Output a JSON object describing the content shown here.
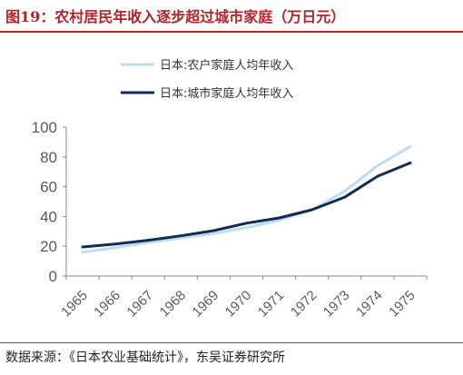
{
  "figure": {
    "title": "图19：农村居民年收入逐步超过城市家庭（万日元）",
    "source": "数据来源：《日本农业基础统计》，东吴证券研究所"
  },
  "colors": {
    "title": "#b5232a",
    "rural": "#bcdcf2",
    "urban": "#0f2d52",
    "axis": "#888888"
  },
  "chart_data": {
    "type": "line",
    "x": [
      "1965",
      "1966",
      "1967",
      "1968",
      "1969",
      "1970",
      "1971",
      "1972",
      "1973",
      "1974",
      "1975"
    ],
    "series": [
      {
        "name": "日本:农户家庭人均年收入",
        "values": [
          16,
          19,
          22.5,
          25.5,
          28.5,
          32.5,
          37.5,
          44.5,
          57,
          74,
          87
        ]
      },
      {
        "name": "日本:城市家庭人均年收入",
        "values": [
          19.5,
          21.5,
          24,
          27,
          30.5,
          35.5,
          39,
          44.5,
          53,
          67,
          76
        ]
      }
    ],
    "ylim": [
      0,
      100
    ],
    "yticks": [
      0,
      20,
      40,
      60,
      80,
      100
    ],
    "grid": false,
    "legend": "top-center"
  }
}
